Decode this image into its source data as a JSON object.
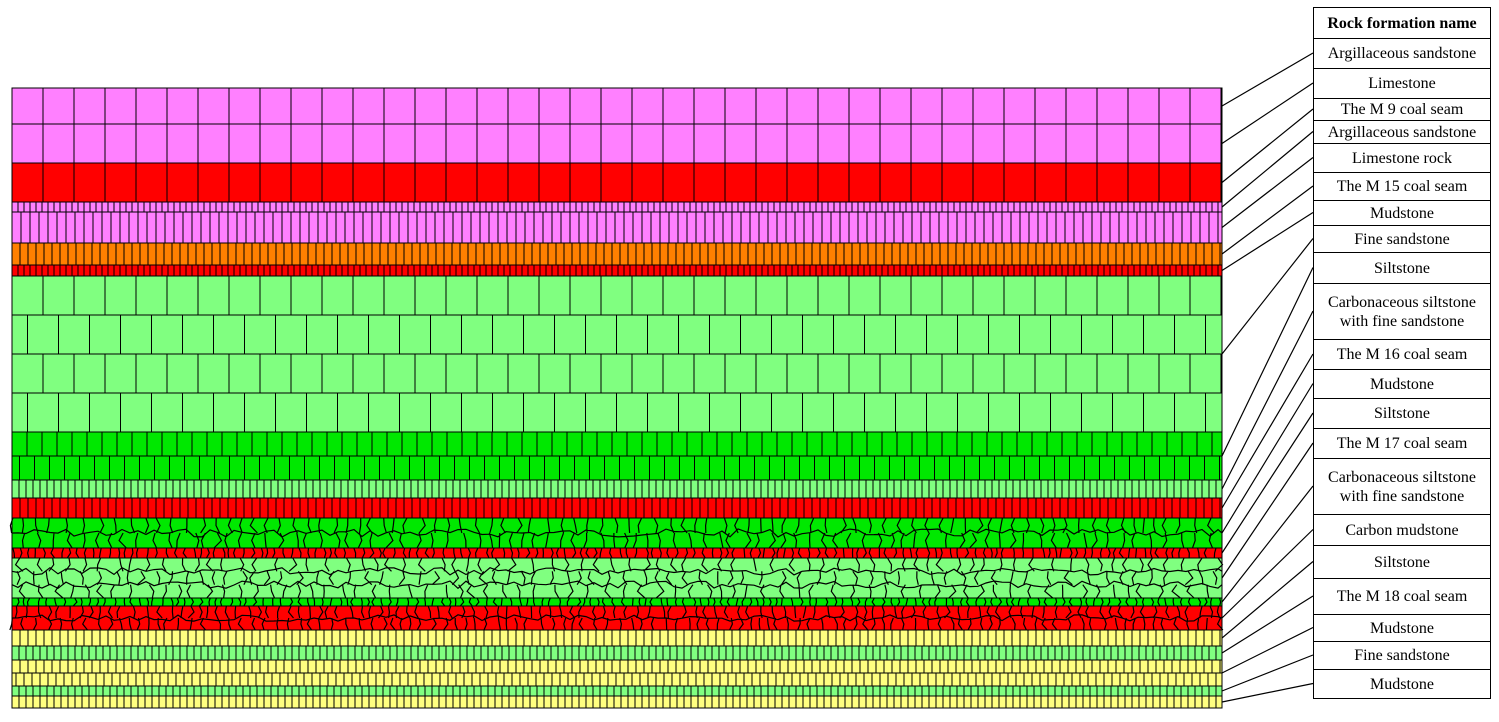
{
  "legend": {
    "header": "Rock formation name",
    "items": [
      "Argillaceous sandstone",
      "Limestone",
      "The M 9 coal seam",
      "Argillaceous sandstone",
      "Limestone rock",
      "The M 15 coal seam",
      "Mudstone",
      "Fine sandstone",
      "Siltstone",
      "Carbonaceous siltstone with fine sandstone",
      "The M 16 coal seam",
      "Mudstone",
      "Siltstone",
      "The M 17 coal seam",
      "Carbonaceous siltstone with fine sandstone",
      "Carbon mudstone",
      "Siltstone",
      "The M 18 coal seam",
      "Mudstone",
      "Fine sandstone",
      "Mudstone"
    ]
  },
  "colors": {
    "magenta": "#ff80ff",
    "red": "#ff0000",
    "orange": "#ff8000",
    "light_green": "#80ff80",
    "green": "#00e800",
    "yellow": "#ffff80",
    "mesh_line": "#000000"
  },
  "layers": [
    {
      "formation": "Argillaceous sandstone",
      "color": "magenta",
      "mesh": "blocks"
    },
    {
      "formation": "Limestone",
      "color": "magenta",
      "mesh": "blocks"
    },
    {
      "formation": "The M 9 coal seam",
      "color": "red",
      "mesh": "blocks"
    },
    {
      "formation": "Argillaceous sandstone",
      "color": "magenta",
      "mesh": "blocks"
    },
    {
      "formation": "Limestone rock",
      "color": "magenta",
      "mesh": "blocks"
    },
    {
      "formation": "The M 15 coal seam",
      "color": "orange",
      "mesh": "blocks"
    },
    {
      "formation": "Mudstone",
      "color": "red",
      "mesh": "blocks"
    },
    {
      "formation": "Fine sandstone",
      "color": "light_green",
      "mesh": "blocks"
    },
    {
      "formation": "Siltstone",
      "color": "green",
      "mesh": "blocks"
    },
    {
      "formation": "Carbonaceous siltstone with fine sandstone",
      "color": "light_green",
      "mesh": "blocks"
    },
    {
      "formation": "The M 16 coal seam",
      "color": "red",
      "mesh": "blocks"
    },
    {
      "formation": "Mudstone",
      "color": "green",
      "mesh": "voronoi"
    },
    {
      "formation": "Siltstone",
      "color": "red",
      "mesh": "voronoi"
    },
    {
      "formation": "The M 17 coal seam",
      "color": "light_green",
      "mesh": "voronoi"
    },
    {
      "formation": "Carbonaceous siltstone with fine sandstone",
      "color": "green",
      "mesh": "voronoi"
    },
    {
      "formation": "Carbon mudstone",
      "color": "red",
      "mesh": "voronoi"
    },
    {
      "formation": "Siltstone",
      "color": "yellow",
      "mesh": "blocks"
    },
    {
      "formation": "The M 18 coal seam",
      "color": "light_green",
      "mesh": "blocks"
    },
    {
      "formation": "Mudstone",
      "color": "yellow",
      "mesh": "blocks"
    },
    {
      "formation": "Fine sandstone",
      "color": "light_green",
      "mesh": "blocks"
    },
    {
      "formation": "Mudstone",
      "color": "yellow",
      "mesh": "blocks"
    }
  ]
}
